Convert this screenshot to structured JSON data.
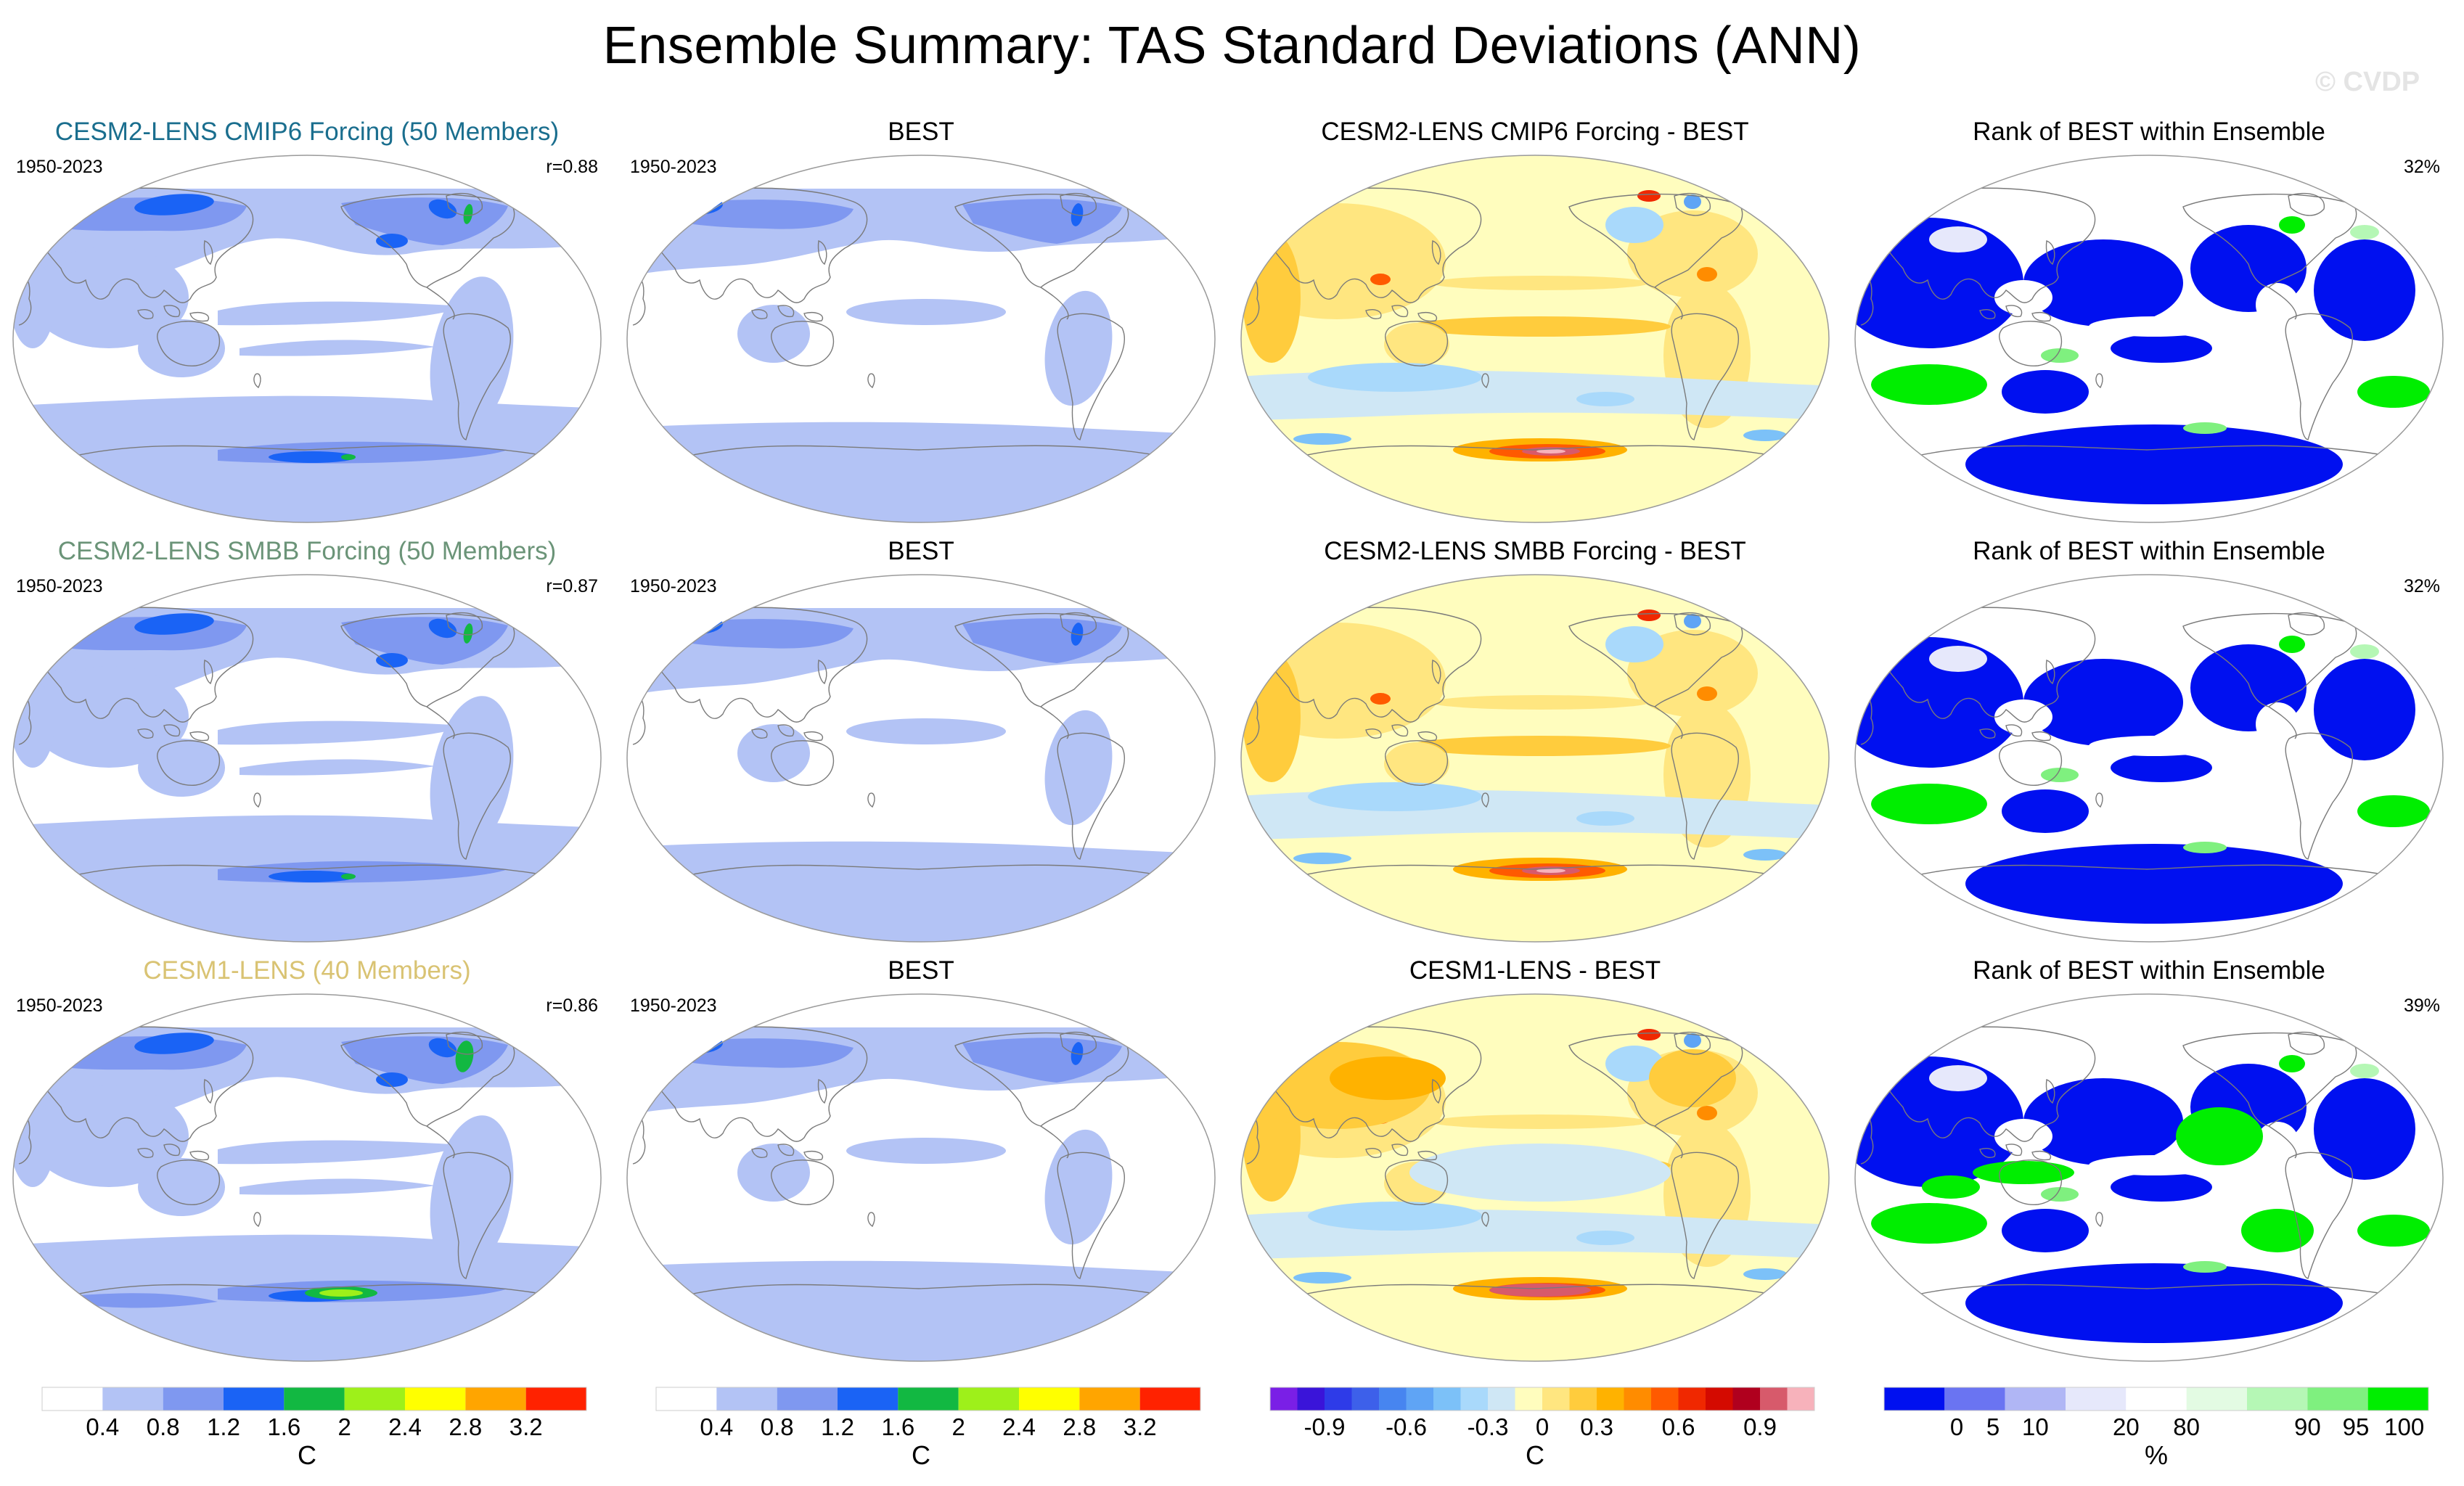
{
  "page": {
    "title": "Ensemble Summary: TAS Standard Deviations (ANN)",
    "watermark": "© CVDP"
  },
  "colors": {
    "std_palette": [
      "#ffffff",
      "#b3c3f5",
      "#7f98f0",
      "#1a63f5",
      "#12b842",
      "#9ef01a",
      "#ffff00",
      "#ffa500",
      "#ff2200"
    ],
    "diff_palette": [
      "#7a1fe6",
      "#3a14d9",
      "#2e3be8",
      "#3d60ea",
      "#4785f0",
      "#5fa4f5",
      "#7cc1f8",
      "#a9d9fb",
      "#cfe7f5",
      "#fffdbe",
      "#ffe680",
      "#ffcc3d",
      "#ffb200",
      "#ff8c00",
      "#ff5a00",
      "#f02800",
      "#d40a00",
      "#b0001e",
      "#d75a6b",
      "#f7b2bb"
    ],
    "rank_palette": [
      "#0010f0",
      "#6a74f2",
      "#b0b6f5",
      "#e6e8fb",
      "#ffffff",
      "#e3fbe3",
      "#b5f7b5",
      "#7ff07f",
      "#00ee00"
    ],
    "model_title_colors": [
      "#1a6e8e",
      "#6b9478",
      "#d9c373"
    ],
    "coast": "#7a7a7a",
    "outline": "#9a9a9a"
  },
  "rows": [
    {
      "model": {
        "title": "CESM2-LENS CMIP6 Forcing (50 Members)",
        "period": "1950-2023",
        "corr": "r=0.88"
      },
      "obs": {
        "title": "BEST",
        "period": "1950-2023"
      },
      "diff": {
        "title": "CESM2-LENS CMIP6 Forcing - BEST"
      },
      "rank": {
        "title": "Rank of BEST within Ensemble",
        "percent": "32%"
      }
    },
    {
      "model": {
        "title": "CESM2-LENS SMBB Forcing (50 Members)",
        "period": "1950-2023",
        "corr": "r=0.87"
      },
      "obs": {
        "title": "BEST",
        "period": "1950-2023"
      },
      "diff": {
        "title": "CESM2-LENS SMBB Forcing - BEST"
      },
      "rank": {
        "title": "Rank of BEST within Ensemble",
        "percent": "32%"
      }
    },
    {
      "model": {
        "title": "CESM1-LENS (40 Members)",
        "period": "1950-2023",
        "corr": "r=0.86"
      },
      "obs": {
        "title": "BEST",
        "period": "1950-2023"
      },
      "diff": {
        "title": "CESM1-LENS - BEST"
      },
      "rank": {
        "title": "Rank of BEST within Ensemble",
        "percent": "39%"
      }
    }
  ],
  "colorbars": {
    "std": {
      "labels": [
        "0.4",
        "0.8",
        "1.2",
        "1.6",
        "2",
        "2.4",
        "2.8",
        "3.2"
      ],
      "unit": "C"
    },
    "diff": {
      "labels": [
        "-0.9",
        "-0.6",
        "-0.3",
        "0",
        "0.3",
        "0.6",
        "0.9"
      ],
      "unit": "C"
    },
    "rank": {
      "labels": [
        "0",
        "5",
        "10",
        "20",
        "80",
        "90",
        "95",
        "100"
      ],
      "unit": "%"
    }
  }
}
